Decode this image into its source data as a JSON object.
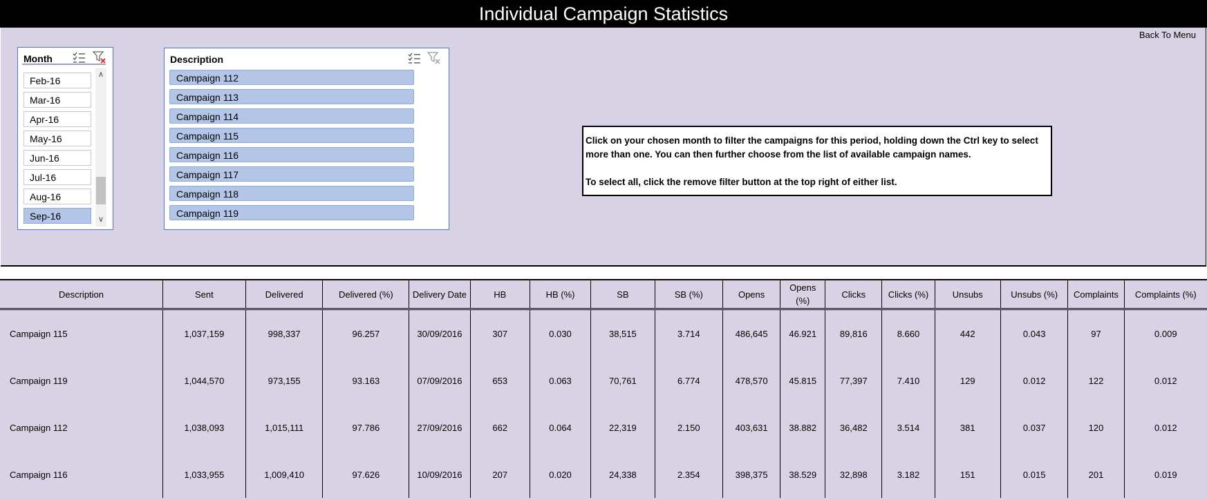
{
  "title": "Individual Campaign Statistics",
  "back_link": "Back To Menu",
  "month_slicer": {
    "title": "Month",
    "items": [
      {
        "label": "Feb-16",
        "selected": false
      },
      {
        "label": "Mar-16",
        "selected": false
      },
      {
        "label": "Apr-16",
        "selected": false
      },
      {
        "label": "May-16",
        "selected": false
      },
      {
        "label": "Jun-16",
        "selected": false
      },
      {
        "label": "Jul-16",
        "selected": false
      },
      {
        "label": "Aug-16",
        "selected": false
      },
      {
        "label": "Sep-16",
        "selected": true
      }
    ]
  },
  "description_slicer": {
    "title": "Description",
    "items": [
      "Campaign 112",
      "Campaign 113",
      "Campaign 114",
      "Campaign 115",
      "Campaign 116",
      "Campaign 117",
      "Campaign 118",
      "Campaign 119"
    ]
  },
  "info": {
    "line1": "Click on your chosen month to filter the campaigns for this period, holding down the Ctrl key to select more than one. You can then further choose from the list of available campaign names.",
    "line2": "To select all, click the remove filter button at the top right of either list."
  },
  "table": {
    "headers": [
      "Description",
      "Sent",
      "Delivered",
      "Delivered (%)",
      "Delivery Date",
      "HB",
      "HB (%)",
      "SB",
      "SB (%)",
      "Opens",
      "Opens (%)",
      "Clicks",
      "Clicks (%)",
      "Unsubs",
      "Unsubs (%)",
      "Complaints",
      "Complaints (%)"
    ],
    "rows": [
      [
        "Campaign 115",
        "1,037,159",
        "998,337",
        "96.257",
        "30/09/2016",
        "307",
        "0.030",
        "38,515",
        "3.714",
        "486,645",
        "46.921",
        "89,816",
        "8.660",
        "442",
        "0.043",
        "97",
        "0.009"
      ],
      [
        "Campaign 119",
        "1,044,570",
        "973,155",
        "93.163",
        "07/09/2016",
        "653",
        "0.063",
        "70,761",
        "6.774",
        "478,570",
        "45.815",
        "77,397",
        "7.410",
        "129",
        "0.012",
        "122",
        "0.012"
      ],
      [
        "Campaign 112",
        "1,038,093",
        "1,015,111",
        "97.786",
        "27/09/2016",
        "662",
        "0.064",
        "22,319",
        "2.150",
        "403,631",
        "38.882",
        "36,482",
        "3.514",
        "381",
        "0.037",
        "120",
        "0.012"
      ],
      [
        "Campaign 116",
        "1,033,955",
        "1,009,410",
        "97.626",
        "10/09/2016",
        "207",
        "0.020",
        "24,338",
        "2.354",
        "398,375",
        "38.529",
        "32,898",
        "3.182",
        "151",
        "0.015",
        "201",
        "0.019"
      ]
    ]
  }
}
